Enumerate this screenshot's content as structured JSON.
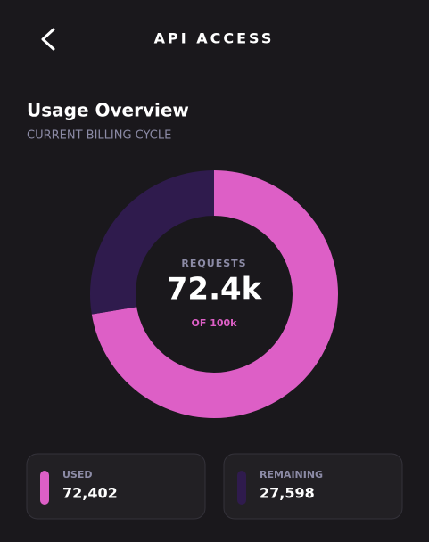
{
  "header": {
    "title": "API ACCESS"
  },
  "chart_data": {
    "type": "pie",
    "title": "Usage Overview",
    "subtitle": "CURRENT BILLING CYCLE",
    "categories": [
      "USED",
      "REMAINING"
    ],
    "values": [
      72402,
      27598
    ],
    "value_labels": [
      "72,402",
      "27,598"
    ],
    "colors": [
      "#dd5fc6",
      "#2f1b4d"
    ],
    "center_title": "REQUESTS",
    "center_label": "72.4k",
    "center_subtitle": "OF 100k"
  }
}
